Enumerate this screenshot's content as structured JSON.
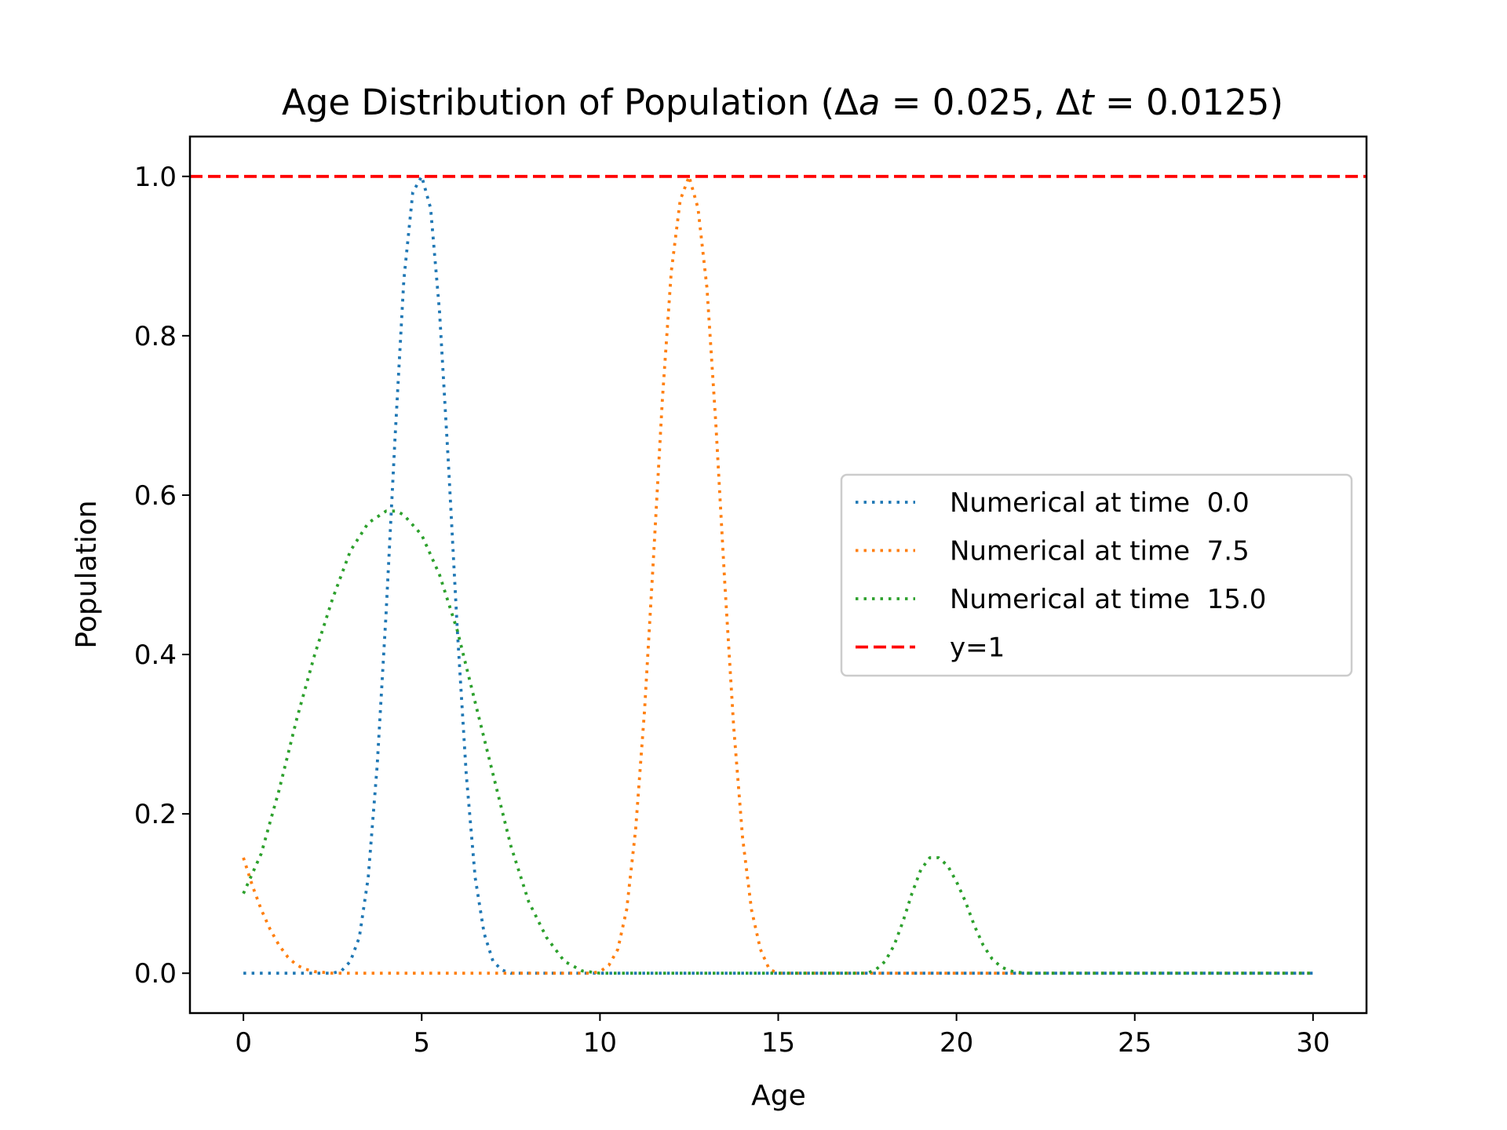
{
  "chart_data": {
    "type": "line",
    "title": {
      "prefix": "Age Distribution of Population (Δ",
      "var_a": "a",
      "middle": " = 0.025, Δ",
      "var_t": "t",
      "suffix": " = 0.0125)"
    },
    "xlabel": "Age",
    "ylabel": "Population",
    "xlim": [
      -1.5,
      31.5
    ],
    "ylim": [
      -0.05,
      1.05
    ],
    "xticks": [
      0,
      5,
      10,
      15,
      20,
      25,
      30
    ],
    "yticks": [
      0.0,
      0.2,
      0.4,
      0.6,
      0.8,
      1.0
    ],
    "xtick_labels": [
      "0",
      "5",
      "10",
      "15",
      "20",
      "25",
      "30"
    ],
    "ytick_labels": [
      "0.0",
      "0.2",
      "0.4",
      "0.6",
      "0.8",
      "1.0"
    ],
    "grid": false,
    "legend_position": "center-right",
    "series": [
      {
        "name": "Numerical at time  0.0",
        "color": "#1f77b4",
        "style": "dotted",
        "x": [
          0,
          2.5,
          2.75,
          3,
          3.25,
          3.5,
          3.75,
          4,
          4.25,
          4.5,
          4.75,
          5,
          5.25,
          5.5,
          5.75,
          6,
          6.25,
          6.5,
          6.75,
          7,
          7.25,
          7.5,
          30
        ],
        "y": [
          0,
          0.0,
          0.003,
          0.015,
          0.045,
          0.12,
          0.26,
          0.45,
          0.67,
          0.87,
          0.98,
          1.0,
          0.96,
          0.83,
          0.64,
          0.43,
          0.25,
          0.12,
          0.05,
          0.015,
          0.004,
          0.0,
          0.0
        ]
      },
      {
        "name": "Numerical at time  7.5",
        "color": "#ff7f0e",
        "style": "dotted",
        "x": [
          0,
          0.25,
          0.5,
          0.75,
          1.0,
          1.25,
          1.5,
          1.75,
          2.0,
          2.25,
          2.5,
          9.75,
          10.0,
          10.25,
          10.5,
          10.75,
          11.0,
          11.25,
          11.5,
          11.75,
          12.0,
          12.25,
          12.5,
          12.75,
          13.0,
          13.25,
          13.5,
          13.75,
          14.0,
          14.25,
          14.5,
          14.75,
          15,
          30
        ],
        "y": [
          0.145,
          0.11,
          0.08,
          0.055,
          0.035,
          0.02,
          0.01,
          0.005,
          0.002,
          0.001,
          0.0,
          0.0,
          0.002,
          0.01,
          0.03,
          0.08,
          0.18,
          0.33,
          0.52,
          0.72,
          0.88,
          0.97,
          1.0,
          0.96,
          0.86,
          0.69,
          0.49,
          0.31,
          0.17,
          0.08,
          0.03,
          0.005,
          0.0,
          0.0
        ]
      },
      {
        "name": "Numerical at time  15.0",
        "color": "#2ca02c",
        "style": "dotted",
        "x": [
          0,
          0.5,
          1,
          1.5,
          2,
          2.5,
          3,
          3.5,
          4,
          4.3,
          4.5,
          5,
          5.5,
          6,
          6.5,
          7,
          7.5,
          8,
          8.5,
          9,
          9.5,
          10,
          17.5,
          17.75,
          18,
          18.25,
          18.5,
          18.75,
          19,
          19.25,
          19.5,
          19.75,
          20,
          20.25,
          20.5,
          20.75,
          21,
          21.25,
          21.5,
          21.75,
          22,
          30
        ],
        "y": [
          0.1,
          0.15,
          0.23,
          0.32,
          0.4,
          0.47,
          0.53,
          0.565,
          0.58,
          0.58,
          0.575,
          0.55,
          0.5,
          0.43,
          0.34,
          0.25,
          0.16,
          0.09,
          0.045,
          0.015,
          0.003,
          0.0,
          0.0,
          0.005,
          0.015,
          0.035,
          0.065,
          0.1,
          0.13,
          0.145,
          0.145,
          0.135,
          0.115,
          0.09,
          0.06,
          0.035,
          0.018,
          0.008,
          0.003,
          0.001,
          0.0,
          0.0
        ]
      },
      {
        "name": "y=1",
        "color": "#ff0000",
        "style": "dashed",
        "x": [
          -1.5,
          31.5
        ],
        "y": [
          1.0,
          1.0
        ]
      }
    ]
  }
}
